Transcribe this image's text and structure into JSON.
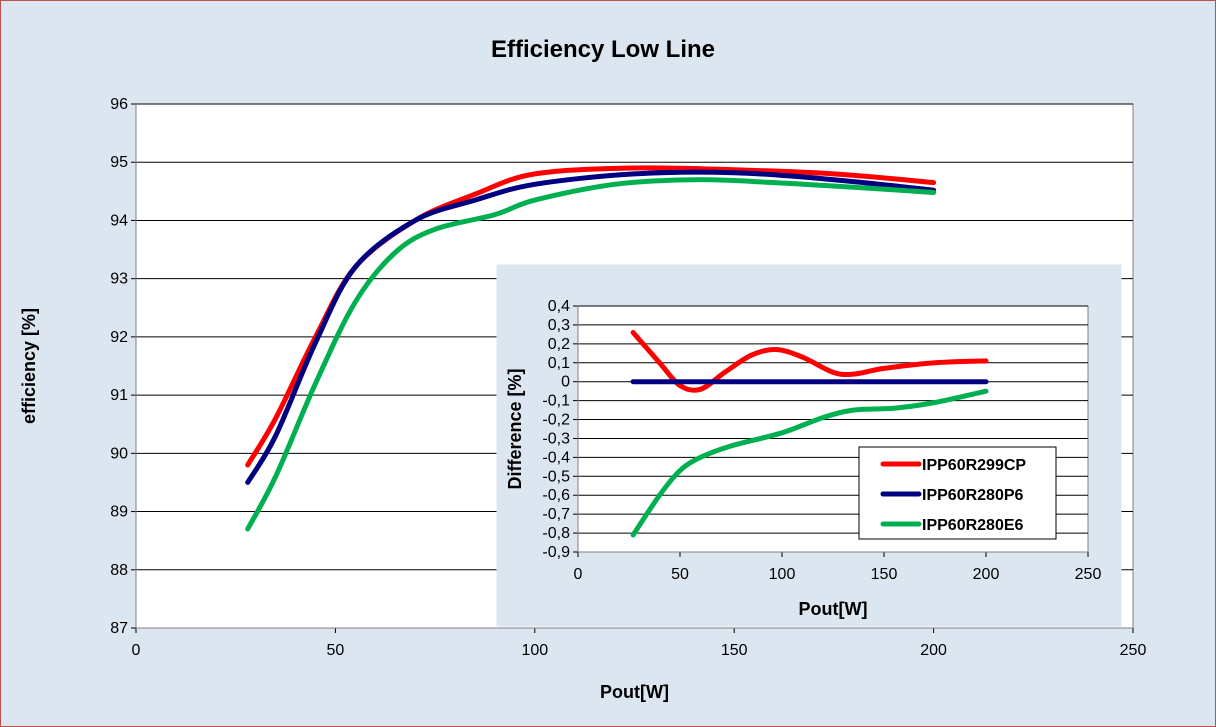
{
  "chart_data": [
    {
      "type": "line",
      "title": "Efficiency Low Line",
      "xlabel": "Pout[W]",
      "ylabel": "efficiency [%]",
      "xlim": [
        0,
        250
      ],
      "ylim": [
        87,
        96
      ],
      "xticks": [
        "0",
        "50",
        "100",
        "150",
        "200",
        "250"
      ],
      "yticks": [
        "87",
        "88",
        "89",
        "90",
        "91",
        "92",
        "93",
        "94",
        "95",
        "96"
      ],
      "grid": "horizontal",
      "series": [
        {
          "name": "IPP60R299CP",
          "color": "#ff0000",
          "points": [
            [
              28,
              89.8
            ],
            [
              35,
              90.6
            ],
            [
              45,
              92.0
            ],
            [
              55,
              93.2
            ],
            [
              70,
              94.0
            ],
            [
              85,
              94.45
            ],
            [
              100,
              94.8
            ],
            [
              125,
              94.9
            ],
            [
              150,
              94.87
            ],
            [
              175,
              94.8
            ],
            [
              200,
              94.65
            ]
          ]
        },
        {
          "name": "IPP60R280P6",
          "color": "#000080",
          "points": [
            [
              28,
              89.5
            ],
            [
              35,
              90.3
            ],
            [
              45,
              91.9
            ],
            [
              55,
              93.2
            ],
            [
              70,
              94.0
            ],
            [
              85,
              94.35
            ],
            [
              100,
              94.62
            ],
            [
              125,
              94.8
            ],
            [
              150,
              94.82
            ],
            [
              175,
              94.7
            ],
            [
              200,
              94.52
            ]
          ]
        },
        {
          "name": "IPP60R280E6",
          "color": "#00b050",
          "points": [
            [
              28,
              88.7
            ],
            [
              35,
              89.6
            ],
            [
              45,
              91.2
            ],
            [
              55,
              92.6
            ],
            [
              65,
              93.45
            ],
            [
              75,
              93.85
            ],
            [
              90,
              94.1
            ],
            [
              100,
              94.35
            ],
            [
              120,
              94.62
            ],
            [
              140,
              94.7
            ],
            [
              160,
              94.65
            ],
            [
              180,
              94.57
            ],
            [
              200,
              94.48
            ]
          ]
        }
      ]
    },
    {
      "type": "line",
      "title": "",
      "xlabel": "Pout[W]",
      "ylabel": "Difference [%]",
      "xlim": [
        0,
        250
      ],
      "ylim": [
        -0.9,
        0.4
      ],
      "xticks": [
        "0",
        "50",
        "100",
        "150",
        "200",
        "250"
      ],
      "yticks": [
        "0,4",
        "0,3",
        "0,2",
        "0,1",
        "0",
        "-0,1",
        "-0,2",
        "-0,3",
        "-0,4",
        "-0,5",
        "-0,6",
        "-0,7",
        "-0,8",
        "-0,9"
      ],
      "grid": "horizontal",
      "legend": "bottom-right",
      "series": [
        {
          "name": "IPP60R299CP",
          "color": "#ff0000",
          "points": [
            [
              27,
              0.26
            ],
            [
              40,
              0.1
            ],
            [
              50,
              -0.02
            ],
            [
              60,
              -0.04
            ],
            [
              72,
              0.05
            ],
            [
              85,
              0.14
            ],
            [
              97,
              0.17
            ],
            [
              110,
              0.13
            ],
            [
              125,
              0.05
            ],
            [
              135,
              0.04
            ],
            [
              150,
              0.07
            ],
            [
              175,
              0.1
            ],
            [
              200,
              0.11
            ]
          ]
        },
        {
          "name": "IPP60R280P6",
          "color": "#000080",
          "points": [
            [
              27,
              0.0
            ],
            [
              100,
              0.0
            ],
            [
              200,
              0.0
            ]
          ]
        },
        {
          "name": "IPP60R280E6",
          "color": "#00b050",
          "points": [
            [
              27,
              -0.81
            ],
            [
              40,
              -0.6
            ],
            [
              50,
              -0.47
            ],
            [
              60,
              -0.4
            ],
            [
              75,
              -0.34
            ],
            [
              100,
              -0.27
            ],
            [
              120,
              -0.19
            ],
            [
              135,
              -0.15
            ],
            [
              155,
              -0.14
            ],
            [
              175,
              -0.11
            ],
            [
              200,
              -0.05
            ]
          ]
        }
      ]
    }
  ]
}
